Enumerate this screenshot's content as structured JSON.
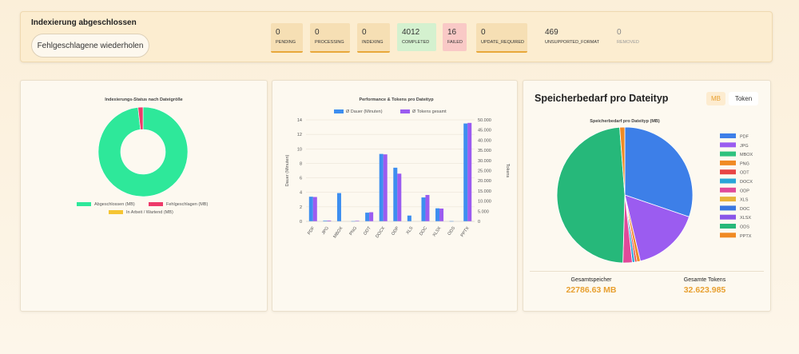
{
  "header": {
    "title": "Indexierung abgeschlossen",
    "retry_label": "Fehlgeschlagene wiederholen"
  },
  "stats": [
    {
      "value": "0",
      "label": "PENDING",
      "bg": "#f6dfb4"
    },
    {
      "value": "0",
      "label": "PROCESSING",
      "bg": "#f6dfb4"
    },
    {
      "value": "0",
      "label": "INDEXING",
      "bg": "#f6dfb4"
    },
    {
      "value": "4012",
      "label": "COMPLETED",
      "bg": "#d4f1cf"
    },
    {
      "value": "16",
      "label": "FAILED",
      "bg": "#f9c9c6"
    },
    {
      "value": "0",
      "label": "UPDATE_REQUIRED",
      "bg": "#f6dfb4"
    },
    {
      "value": "469",
      "label": "UNSUPPORTED_FORMAT",
      "bg": "transparent"
    },
    {
      "value": "0",
      "label": "REMOVED",
      "bg": "transparent"
    }
  ],
  "colors": {
    "accent": "#e8a030",
    "completed": "#2ee89a",
    "failed": "#ee3a6a",
    "pending": "#f5c533"
  },
  "chart_data": [
    {
      "type": "pie",
      "title": "Indexierungs-Status nach Dateigröße",
      "labels": [
        "Abgeschlossen (MB)",
        "Fehlgeschlagen (MB)",
        "In Arbeit / Wartend (MB)"
      ],
      "values": [
        98.2,
        1.8,
        0
      ],
      "colors": [
        "#2ee89a",
        "#ee3a6a",
        "#f5c533"
      ],
      "donut": true,
      "legend": "bottom"
    },
    {
      "type": "bar",
      "title": "Performance & Tokens pro Dateityp",
      "categories": [
        "PDF",
        "JPG",
        "MBOX",
        "PNG",
        "ODT",
        "DOCX",
        "ODP",
        "XLS",
        "DOC",
        "XLSX",
        "ODS",
        "PPTX"
      ],
      "series": [
        {
          "name": "Ø Dauer (Minuten)",
          "values": [
            3.4,
            0.1,
            3.9,
            0.05,
            1.2,
            9.3,
            7.4,
            0.8,
            3.3,
            1.8,
            0.05,
            13.5
          ],
          "color": "#3d8ef0",
          "axis": "left"
        },
        {
          "name": "Ø Tokens gesamt",
          "values": [
            12000,
            400,
            0,
            300,
            4500,
            33000,
            23500,
            0,
            13000,
            6300,
            0,
            48500
          ],
          "color": "#9b5cf0",
          "axis": "right"
        }
      ],
      "ylabel": "Dauer (Minuten)",
      "ylim": [
        0,
        14
      ],
      "y2label": "Tokens",
      "y2lim": [
        0,
        50000
      ],
      "yticks": [
        "0",
        "2",
        "4",
        "6",
        "8",
        "10",
        "12",
        "14"
      ],
      "y2ticks": [
        "0",
        "5.000",
        "10.000",
        "15.000",
        "20.000",
        "25.000",
        "30.000",
        "35.000",
        "40.000",
        "45.000",
        "50.000"
      ],
      "legend": "top",
      "grid": true
    },
    {
      "type": "pie",
      "title": "Speicherbedarf pro Dateityp (MB)",
      "labels": [
        "PDF",
        "JPG",
        "MBOX",
        "PNG",
        "ODT",
        "DOCX",
        "ODP",
        "XLS",
        "DOC",
        "XLSX",
        "ODS",
        "PPTX"
      ],
      "values": [
        30,
        16,
        0,
        0.8,
        0.5,
        0.6,
        2.2,
        0,
        0,
        0,
        48,
        1.2
      ],
      "colors": [
        "#3d7fe8",
        "#9b5cf0",
        "#2ec27e",
        "#f08a24",
        "#e84545",
        "#2aa5d8",
        "#e04a9a",
        "#e8b33a",
        "#3a77e0",
        "#8a55e8",
        "#26b87a",
        "#f08a24"
      ],
      "legend": "right"
    }
  ],
  "card3": {
    "title": "Speicherbedarf pro Dateityp",
    "toggle": [
      "MB",
      "Token"
    ],
    "totals": [
      {
        "label": "Gesamtspeicher",
        "value": "22786.63 MB"
      },
      {
        "label": "Gesamte Tokens",
        "value": "32.623.985"
      }
    ]
  }
}
